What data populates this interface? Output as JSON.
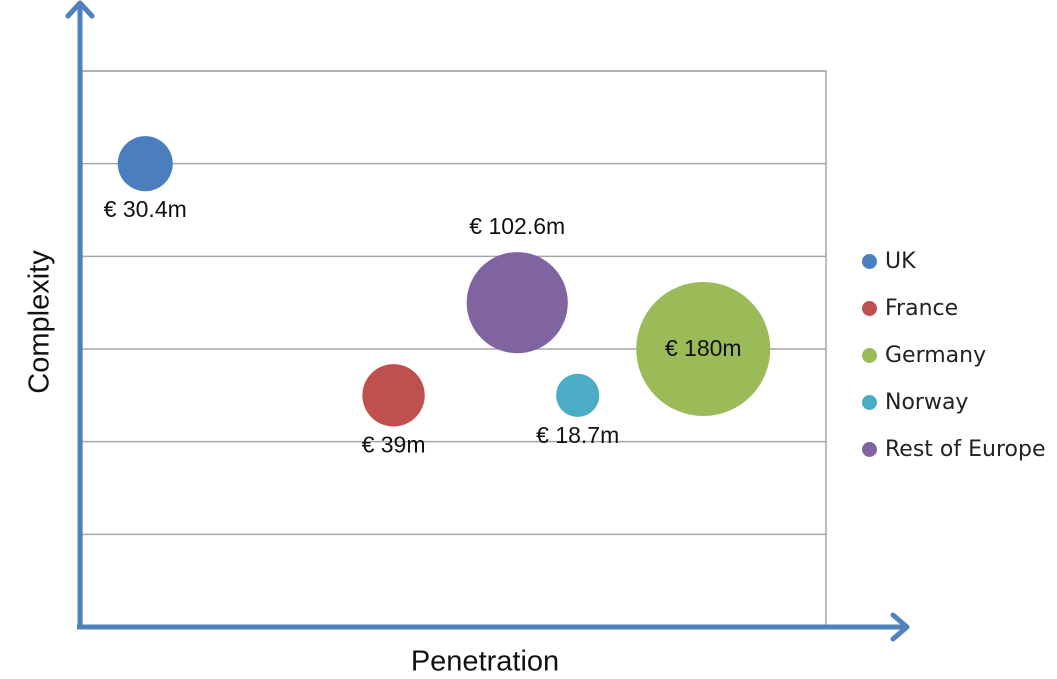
{
  "chart_data": {
    "type": "scatter",
    "subtype": "bubble",
    "title": "",
    "xlabel": "Penetration",
    "ylabel": "Complexity",
    "xlim": [
      0,
      8
    ],
    "ylim": [
      0,
      6
    ],
    "grid": {
      "horizontal": true,
      "vertical": false,
      "y_lines": [
        1,
        2,
        3,
        4,
        5,
        6
      ]
    },
    "axis_tick_labels": false,
    "legend_position": "right",
    "series": [
      {
        "name": "UK",
        "color": "#4a7ebf",
        "x": 0.68,
        "y": 5.0,
        "size": 30.4,
        "label": "€ 30.4m",
        "label_pos": "below"
      },
      {
        "name": "France",
        "color": "#c0504d",
        "x": 3.35,
        "y": 2.5,
        "size": 39,
        "label": "€ 39m",
        "label_pos": "below"
      },
      {
        "name": "Germany",
        "color": "#9bbb59",
        "x": 6.68,
        "y": 3.0,
        "size": 180,
        "label": "€ 180m",
        "label_pos": "center"
      },
      {
        "name": "Norway",
        "color": "#4bacc6",
        "x": 5.33,
        "y": 2.5,
        "size": 18.7,
        "label": "€ 18.7m",
        "label_pos": "below"
      },
      {
        "name": "Rest of Europe",
        "color": "#8064a2",
        "x": 4.68,
        "y": 3.5,
        "size": 102.6,
        "label": "€ 102.6m",
        "label_pos": "above"
      }
    ]
  },
  "axes": {
    "x_label": "Penetration",
    "y_label": "Complexity",
    "axis_color": "#4f81bd",
    "grid_color": "#a6a6a6"
  },
  "legend": {
    "items": [
      {
        "label": "UK",
        "color": "#4a7ebf"
      },
      {
        "label": "France",
        "color": "#c0504d"
      },
      {
        "label": "Germany",
        "color": "#9bbb59"
      },
      {
        "label": "Norway",
        "color": "#4bacc6"
      },
      {
        "label": "Rest of Europe",
        "color": "#8064a2"
      }
    ]
  }
}
